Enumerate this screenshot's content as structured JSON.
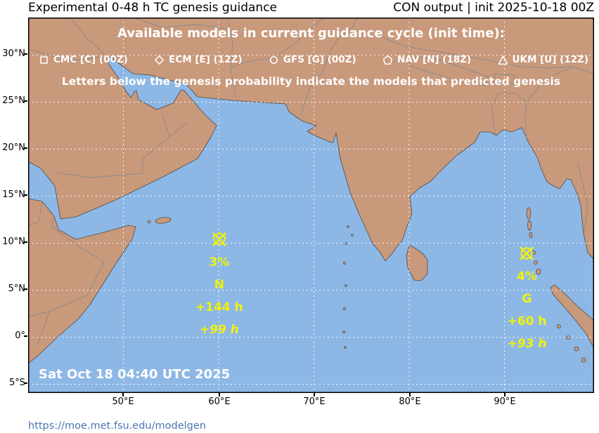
{
  "header": {
    "title_left": "Experimental 0-48 h TC genesis guidance",
    "title_right": "CON output | init 2025-10-18 00Z"
  },
  "map": {
    "overlay_title": "Available models in current guidance cycle (init time):",
    "legend": [
      {
        "symbol": "square",
        "label": "CMC [C] (00Z)"
      },
      {
        "symbol": "diamond",
        "label": "ECM [E] (12Z)"
      },
      {
        "symbol": "circle",
        "label": "GFS [G] (00Z)"
      },
      {
        "symbol": "pentagon",
        "label": "NAV [N] (18Z)"
      },
      {
        "symbol": "triangle",
        "label": "UKM [U] (12Z)"
      }
    ],
    "legend_note": "Letters below the genesis probability indicate the models that predicted genesis",
    "timestamp": "Sat Oct 18 04:40 UTC 2025",
    "lat_ticks": [
      "30°N",
      "25°N",
      "20°N",
      "15°N",
      "10°N",
      "5°N",
      "0°",
      "5°S"
    ],
    "lon_ticks": [
      "50°E",
      "60°E",
      "70°E",
      "80°E",
      "90°E"
    ],
    "genesis_points": [
      {
        "lon": 60.1,
        "lat": 10.3,
        "probability": "3%",
        "models": "N",
        "lead_models": "+144 h",
        "lead_consensus": "+99 h"
      },
      {
        "lon": 92.4,
        "lat": 8.8,
        "probability": "4%",
        "models": "G",
        "lead_models": "+60 h",
        "lead_consensus": "+93 h"
      }
    ]
  },
  "footer": {
    "url": "https://moe.met.fsu.edu/modelgen"
  },
  "colors": {
    "ocean": "#8db8e6",
    "land": "#c9997b",
    "grid": "#ffffff",
    "marker": "#f2f209",
    "url_link": "#4a78b0"
  }
}
